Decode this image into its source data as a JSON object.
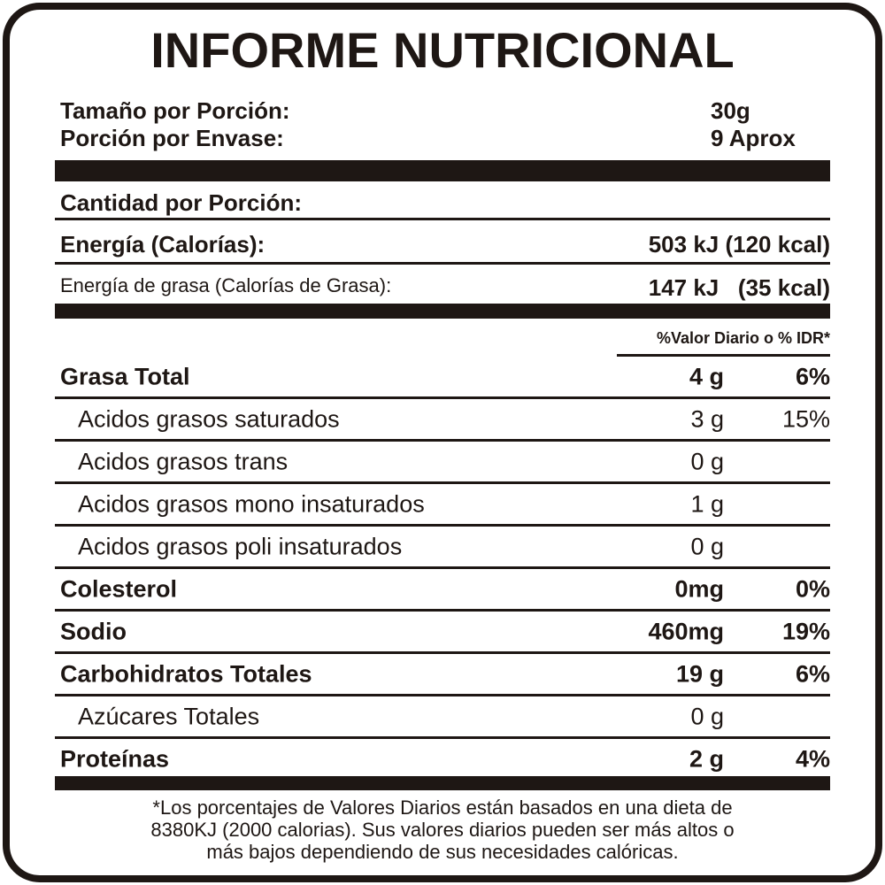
{
  "title": "INFORME NUTRICIONAL",
  "serving": [
    {
      "label": "Tamaño por Porción:",
      "value": "30g"
    },
    {
      "label": "Porción por Envase:",
      "value": "9 Aprox"
    }
  ],
  "amount_header": "Cantidad por Porción:",
  "energy": {
    "label": "Energía (Calorías):",
    "value": "503 kJ (120 kcal)"
  },
  "fat_energy": {
    "label": "Energía de grasa (Calorías de Grasa):",
    "value": "147 kJ   (35 kcal)"
  },
  "dv_header": "%Valor Diario o % IDR*",
  "nutrients": [
    {
      "name": "Grasa Total",
      "amount": "4 g",
      "dv": "6%"
    },
    {
      "name": "Acidos grasos saturados",
      "amount": "3 g",
      "dv": "15%",
      "indent": true
    },
    {
      "name": "Acidos grasos trans",
      "amount": "0 g",
      "indent": true
    },
    {
      "name": "Acidos grasos mono insaturados",
      "amount": "1 g",
      "indent": true
    },
    {
      "name": "Acidos grasos poli insaturados",
      "amount": "0 g",
      "indent": true
    },
    {
      "name": "Colesterol",
      "amount": "0mg",
      "dv": "0%"
    },
    {
      "name": "Sodio",
      "amount": "460mg",
      "dv": "19%"
    },
    {
      "name": "Carbohidratos Totales",
      "amount": "19 g",
      "dv": "6%"
    },
    {
      "name": "Azúcares Totales",
      "amount": "0 g",
      "indent": true
    },
    {
      "name": "Proteínas",
      "amount": "2 g",
      "dv": "4%"
    }
  ],
  "footnote": [
    "*Los porcentajes de Valores Diarios están basados en una dieta de",
    "8380KJ (2000 calorias). Sus valores diarios pueden ser más altos o",
    "más bajos dependiendo de sus necesidades calóricas."
  ]
}
